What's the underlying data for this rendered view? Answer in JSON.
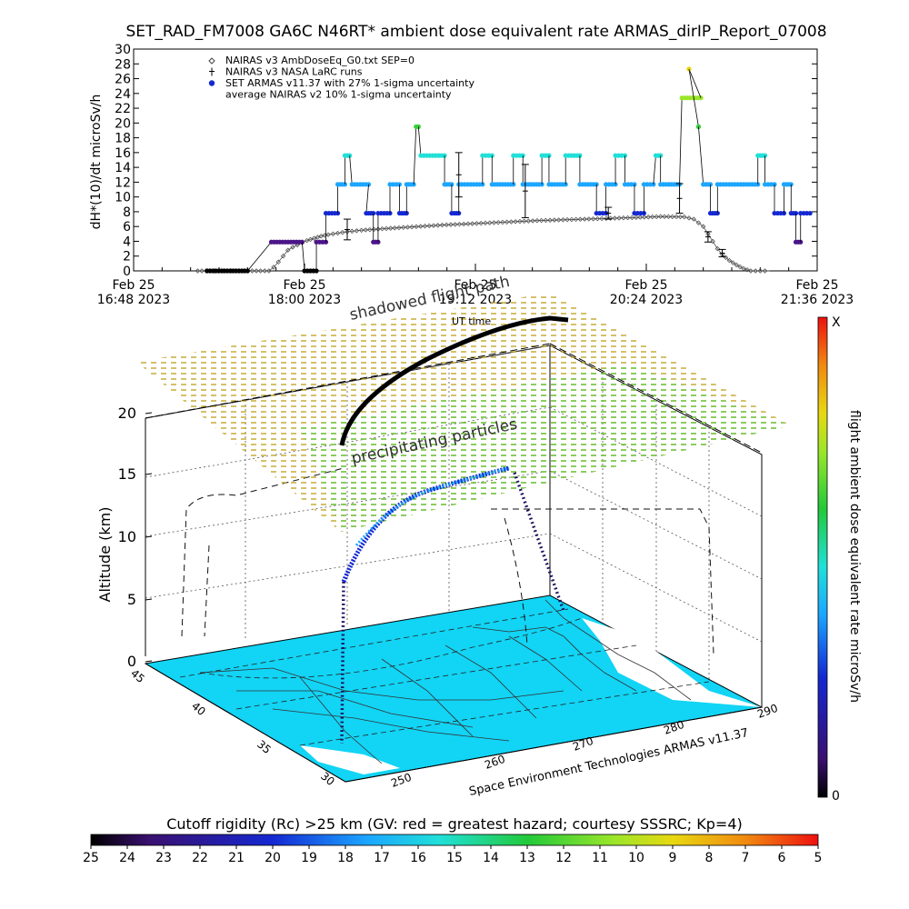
{
  "title": "SET_RAD_FM7008  GA6C N46RT* ambient dose equivalent rate ARMAS_dirIP_Report_07008",
  "colors": {
    "armas_light": "#1ca6ff",
    "armas_dark": "#1428d2",
    "armas_cyan": "#20e0d8",
    "armas_purple": "#4b1588",
    "armas_green": "#36d13a",
    "armas_lime": "#9be62a",
    "armas_yellow": "#e8d812",
    "nairas_gray": "#555555",
    "map_fill": "#12d4f5"
  },
  "chart_data": [
    {
      "type": "line",
      "title": "SET_RAD_FM7008  GA6C N46RT* ambient dose equivalent rate ARMAS_dirIP_Report_07008",
      "ylabel": "dH*(10)/dt microSv/h",
      "xlabel": "UT time",
      "ylim": [
        0,
        30
      ],
      "xlim_minutes": [
        0,
        288
      ],
      "yticks": [
        "0",
        "2",
        "4",
        "6",
        "8",
        "10",
        "12",
        "14",
        "16",
        "18",
        "20",
        "22",
        "24",
        "26",
        "28",
        "30"
      ],
      "xticks": [
        {
          "date": "Feb 25",
          "time": "16:48 2023"
        },
        {
          "date": "Feb 25",
          "time": "18:00 2023"
        },
        {
          "date": "Feb 25",
          "time": "19:12 2023"
        },
        {
          "date": "Feb 25",
          "time": "20:24 2023"
        },
        {
          "date": "Feb 25",
          "time": "21:36 2023"
        }
      ],
      "legend": [
        {
          "symbol": "◇",
          "label": "NAIRAS v3 AmbDoseEq_G0.txt SEP=0"
        },
        {
          "symbol": "ǂ",
          "label": "NAIRAS v3 NASA LaRC runs"
        },
        {
          "symbol": "●",
          "label": "SET ARMAS v11.37 with 27% 1-sigma uncertainty"
        },
        {
          "symbol": "",
          "label": "average NAIRAS v2 10% 1-sigma uncertainty"
        }
      ],
      "legend_position": "top-left",
      "series": [
        {
          "name": "NAIRAS v3 AmbDoseEq_G0.txt SEP=0",
          "marker": "diamond",
          "points": [
            [
              27,
              0
            ],
            [
              57,
              0
            ],
            [
              59,
              0.5
            ],
            [
              61,
              1.2
            ],
            [
              63,
              2
            ],
            [
              65,
              2.8
            ],
            [
              67,
              3.2
            ],
            [
              69,
              3.5
            ],
            [
              71,
              3.8
            ],
            [
              73,
              4.1
            ],
            [
              76,
              4.4
            ],
            [
              79,
              4.7
            ],
            [
              82,
              4.9
            ],
            [
              86,
              5.1
            ],
            [
              90,
              5.3
            ],
            [
              96,
              5.5
            ],
            [
              110,
              5.8
            ],
            [
              130,
              6.2
            ],
            [
              150,
              6.5
            ],
            [
              170,
              6.8
            ],
            [
              190,
              7.0
            ],
            [
              210,
              7.2
            ],
            [
              222,
              7.35
            ],
            [
              232,
              7.3
            ],
            [
              236,
              7.0
            ],
            [
              238,
              6.5
            ],
            [
              240,
              6
            ],
            [
              242,
              5
            ],
            [
              244,
              4
            ],
            [
              246,
              3
            ],
            [
              248,
              2.2
            ],
            [
              251,
              1.4
            ],
            [
              254,
              0.8
            ],
            [
              257,
              0.3
            ],
            [
              260,
              0
            ],
            [
              268,
              0
            ]
          ]
        },
        {
          "name": "NAIRAS v3 NASA LaRC runs",
          "marker": "errorbar",
          "points": [
            [
              90,
              5.6,
              1.4
            ],
            [
              137,
              13.0,
              3.0
            ],
            [
              165,
              10.8,
              3.6
            ],
            [
              200,
              7.8,
              0.8
            ],
            [
              230,
              9.8,
              2.0
            ],
            [
              242,
              4.6,
              0.7
            ],
            [
              248,
              2.4,
              0.5
            ]
          ]
        },
        {
          "name": "SET ARMAS v11.37 with 27% 1-sigma uncertainty",
          "marker": "dot",
          "segments": [
            {
              "x0": 31,
              "x1": 48,
              "y": 0,
              "c": "#000000"
            },
            {
              "x0": 58,
              "x1": 71,
              "y": 3.9,
              "c": "#4b1588"
            },
            {
              "x0": 72,
              "x1": 77,
              "y": 0,
              "c": "#000000"
            },
            {
              "x0": 77,
              "x1": 81,
              "y": 3.9,
              "c": "#4b1588"
            },
            {
              "x0": 81,
              "x1": 86,
              "y": 7.8,
              "c": "#1428d2"
            },
            {
              "x0": 86,
              "x1": 89,
              "y": 11.7,
              "c": "#1ca6ff"
            },
            {
              "x0": 89,
              "x1": 91,
              "y": 15.6,
              "c": "#20e0d8"
            },
            {
              "x0": 92,
              "x1": 99,
              "y": 11.7,
              "c": "#1ca6ff"
            },
            {
              "x0": 98,
              "x1": 101,
              "y": 7.8,
              "c": "#1428d2"
            },
            {
              "x0": 101,
              "x1": 103,
              "y": 3.9,
              "c": "#4b1588"
            },
            {
              "x0": 103,
              "x1": 108,
              "y": 7.8,
              "c": "#1428d2"
            },
            {
              "x0": 108,
              "x1": 112,
              "y": 11.7,
              "c": "#1ca6ff"
            },
            {
              "x0": 112,
              "x1": 115,
              "y": 7.8,
              "c": "#1428d2"
            },
            {
              "x0": 115,
              "x1": 118,
              "y": 11.7,
              "c": "#1ca6ff"
            },
            {
              "x0": 119,
              "x1": 120,
              "y": 19.5,
              "c": "#36d13a"
            },
            {
              "x0": 121,
              "x1": 131,
              "y": 15.6,
              "c": "#20e0d8"
            },
            {
              "x0": 131,
              "x1": 134,
              "y": 11.7,
              "c": "#1ca6ff"
            },
            {
              "x0": 134,
              "x1": 137,
              "y": 7.8,
              "c": "#1428d2"
            },
            {
              "x0": 137,
              "x1": 147,
              "y": 11.7,
              "c": "#1ca6ff"
            },
            {
              "x0": 147,
              "x1": 151,
              "y": 15.6,
              "c": "#20e0d8"
            },
            {
              "x0": 151,
              "x1": 160,
              "y": 11.7,
              "c": "#1ca6ff"
            },
            {
              "x0": 160,
              "x1": 164,
              "y": 15.6,
              "c": "#20e0d8"
            },
            {
              "x0": 164,
              "x1": 172,
              "y": 11.7,
              "c": "#1ca6ff"
            },
            {
              "x0": 172,
              "x1": 175,
              "y": 15.6,
              "c": "#20e0d8"
            },
            {
              "x0": 175,
              "x1": 182,
              "y": 11.7,
              "c": "#1ca6ff"
            },
            {
              "x0": 182,
              "x1": 188,
              "y": 15.6,
              "c": "#20e0d8"
            },
            {
              "x0": 188,
              "x1": 195,
              "y": 11.7,
              "c": "#1ca6ff"
            },
            {
              "x0": 195,
              "x1": 199,
              "y": 7.8,
              "c": "#1428d2"
            },
            {
              "x0": 199,
              "x1": 203,
              "y": 11.7,
              "c": "#1ca6ff"
            },
            {
              "x0": 203,
              "x1": 207,
              "y": 15.6,
              "c": "#20e0d8"
            },
            {
              "x0": 207,
              "x1": 211,
              "y": 11.7,
              "c": "#1ca6ff"
            },
            {
              "x0": 211,
              "x1": 215,
              "y": 7.8,
              "c": "#1428d2"
            },
            {
              "x0": 215,
              "x1": 219,
              "y": 11.7,
              "c": "#1ca6ff"
            },
            {
              "x0": 220,
              "x1": 222,
              "y": 15.6,
              "c": "#20e0d8"
            },
            {
              "x0": 222,
              "x1": 230,
              "y": 11.7,
              "c": "#1ca6ff"
            },
            {
              "x0": 231,
              "x1": 239,
              "y": 23.4,
              "c": "#9be62a"
            },
            {
              "x0": 234,
              "x1": 234,
              "y": 27.3,
              "c": "#e8d812"
            },
            {
              "x0": 238,
              "x1": 238,
              "y": 19.5,
              "c": "#36d13a"
            },
            {
              "x0": 240,
              "x1": 243,
              "y": 11.7,
              "c": "#1ca6ff"
            },
            {
              "x0": 243,
              "x1": 246,
              "y": 7.8,
              "c": "#1428d2"
            },
            {
              "x0": 246,
              "x1": 263,
              "y": 11.7,
              "c": "#1ca6ff"
            },
            {
              "x0": 263,
              "x1": 266,
              "y": 15.6,
              "c": "#20e0d8"
            },
            {
              "x0": 266,
              "x1": 270,
              "y": 11.7,
              "c": "#1ca6ff"
            },
            {
              "x0": 270,
              "x1": 274,
              "y": 7.8,
              "c": "#1428d2"
            },
            {
              "x0": 274,
              "x1": 277,
              "y": 11.7,
              "c": "#1ca6ff"
            },
            {
              "x0": 277,
              "x1": 279,
              "y": 7.8,
              "c": "#1428d2"
            },
            {
              "x0": 279,
              "x1": 281,
              "y": 3.9,
              "c": "#4b1588"
            },
            {
              "x0": 281,
              "x1": 285,
              "y": 7.8,
              "c": "#1428d2"
            }
          ]
        }
      ]
    },
    {
      "type": "scatter",
      "title": "",
      "zlabel": "Altitude (km)",
      "zticks": [
        "0",
        "5",
        "10",
        "15",
        "20"
      ],
      "lat_ticks": [
        "45",
        "40",
        "35",
        "30"
      ],
      "lon_ticks": [
        "250",
        "260",
        "270",
        "280",
        "290"
      ],
      "annotations": [
        "shadowed flight path",
        "precipitating particles",
        "UT time"
      ],
      "credit": "Space Environment Technologies ARMAS v11.37"
    },
    {
      "type": "heatmap",
      "colorbar_label": "flight ambient dose equivalent rate microSv/h",
      "colorbar_top": "X",
      "colorbar_bottom": "0"
    },
    {
      "type": "heatmap",
      "colorbar_label": "Cutoff rigidity (Rc) >25 km (GV: red = greatest hazard; courtesy SSSRC; Kp=4)",
      "ticks": [
        "25",
        "24",
        "23",
        "22",
        "21",
        "20",
        "19",
        "18",
        "17",
        "16",
        "15",
        "14",
        "13",
        "12",
        "11",
        "10",
        "9",
        "8",
        "7",
        "6",
        "5"
      ]
    }
  ]
}
